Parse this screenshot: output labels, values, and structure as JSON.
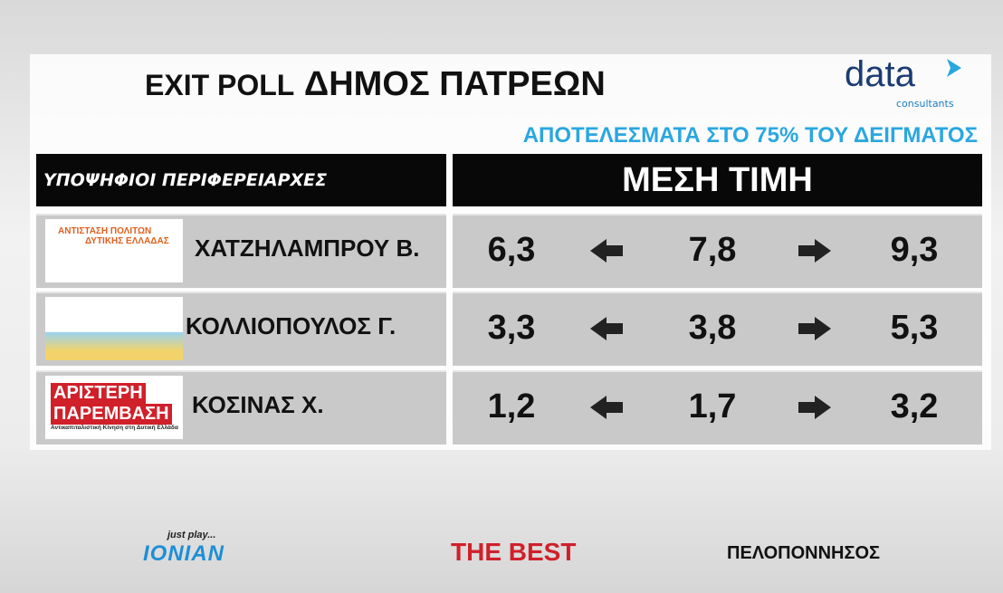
{
  "header": {
    "title_prefix": "EXIT POLL",
    "title": "ΔΗΜΟΣ ΠΑΤΡΕΩΝ",
    "subtitle": "ΑΠΟΤΕΛΕΣΜΑΤΑ ΣΤΟ 75% ΤΟΥ ΔΕΙΓΜΑΤΟΣ",
    "logo": "data",
    "logo_sub": "consultants"
  },
  "table": {
    "headers": [
      "ΥΠΟΨΗΦΙΟΙ ΠΕΡΙΦΕΡΕΙΑΡΧΕΣ",
      "ΜΕΣΗ ΤΙΜΗ"
    ],
    "rows": [
      {
        "logo": [
          "ΑΝΤΙΣΤΑΣΗ ΠΟΛΙΤΩΝ",
          "ΔΥΤΙΚΗΣ ΕΛΛΑΔΑΣ"
        ],
        "name": "ΧΑΤΖΗΛΑΜΠΡΟΥ Β.",
        "low": "6,3",
        "mid": "7,8",
        "high": "9,3"
      },
      {
        "logo": [],
        "name": "ΚΟΛΛΙΟΠΟΥΛΟΣ Γ.",
        "low": "3,3",
        "mid": "3,8",
        "high": "5,3"
      },
      {
        "logo": [
          "ΑΡΙΣΤΕΡΗ",
          "ΠΑΡΕΜΒΑΣΗ",
          "Αντικαπιταλιστική Κίνηση στη Δυτική Ελλάδα"
        ],
        "name": "ΚΟΣΙΝΑΣ Χ.",
        "low": "1,2",
        "mid": "1,7",
        "high": "3,2"
      }
    ]
  },
  "footer": {
    "tagline": "just play...",
    "ionian": "IONIAN",
    "best": "THE BEST",
    "pelop": "ΠΕΛΟΠΟΝΝΗΣΟΣ"
  }
}
